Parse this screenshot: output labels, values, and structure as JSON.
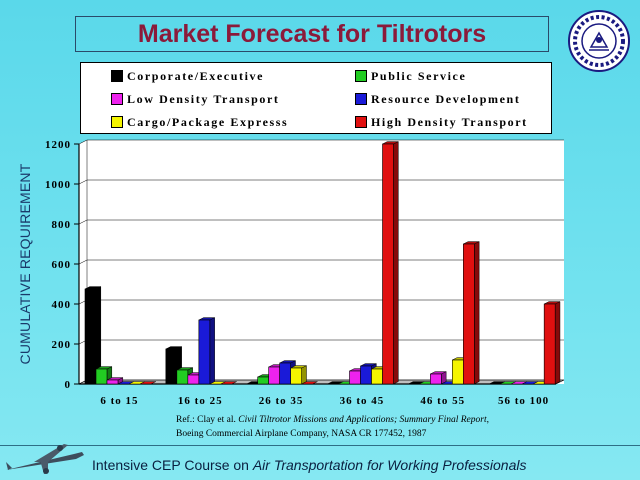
{
  "title": "Market Forecast for Tiltrotors",
  "legend": [
    {
      "label": "Corporate/Executive",
      "color": "#000000"
    },
    {
      "label": "Public Service",
      "color": "#22cc22"
    },
    {
      "label": "Low Density Transport",
      "color": "#ee22ee"
    },
    {
      "label": "Resource Development",
      "color": "#1a1ad8"
    },
    {
      "label": "Cargo/Package Expresss",
      "color": "#f5f500"
    },
    {
      "label": "High Density Transport",
      "color": "#e01010"
    }
  ],
  "chart_data": {
    "type": "bar",
    "ylabel": "CUMULATIVE REQUIREMENT",
    "xlabel": "",
    "ylim": [
      0,
      1200
    ],
    "yticks": [
      "0",
      "200",
      "400",
      "600",
      "800",
      "1000",
      "1200"
    ],
    "categories": [
      "6 to 15",
      "16 to 25",
      "26 to 35",
      "36 to 45",
      "46 to 55",
      "56 to 100"
    ],
    "series": [
      {
        "name": "Corporate/Executive",
        "values": [
          475,
          175,
          0,
          0,
          0,
          0
        ]
      },
      {
        "name": "Public Service",
        "values": [
          75,
          70,
          35,
          0,
          0,
          0
        ]
      },
      {
        "name": "Low Density Transport",
        "values": [
          20,
          45,
          85,
          65,
          50,
          0
        ]
      },
      {
        "name": "Resource Development",
        "values": [
          0,
          320,
          105,
          90,
          0,
          0
        ]
      },
      {
        "name": "Cargo/Package Expresss",
        "values": [
          0,
          0,
          80,
          75,
          120,
          0
        ]
      },
      {
        "name": "High Density Transport",
        "values": [
          0,
          0,
          0,
          1200,
          700,
          400
        ]
      }
    ]
  },
  "reference": {
    "prefix": "Ref.: Clay et al. ",
    "title": "Civil Tiltrotor Missions and Applications; Summary Final Report",
    "suffix": ",",
    "line2": "Boeing Commercial Airplane Company, NASA CR 177452, 1987"
  },
  "footer": {
    "prefix": "Intensive CEP Course on ",
    "italic": "Air Transportation for Working Professionals"
  },
  "icons": {
    "logo": "institute-logo-icon",
    "plane": "airplane-icon"
  }
}
